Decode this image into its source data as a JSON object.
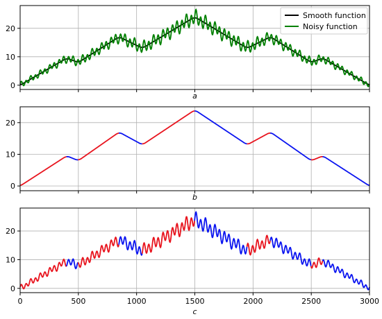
{
  "chart_data": [
    {
      "type": "line",
      "panel_label": "a",
      "xlim": [
        0,
        3000
      ],
      "ylim": [
        -1.5,
        28
      ],
      "x_ticks": [
        0,
        500,
        1000,
        1500,
        2000,
        2500,
        3000
      ],
      "y_ticks": [
        0,
        10,
        20
      ],
      "grid": true,
      "legend": "top-right",
      "series": [
        {
          "name": "Smooth function",
          "color": "#000000",
          "x": [
            0,
            400,
            500,
            850,
            1050,
            1500,
            1950,
            2150,
            2500,
            2600,
            3000
          ],
          "y": [
            0,
            9.5,
            8,
            17,
            13,
            24,
            13,
            17,
            8,
            9.5,
            0
          ]
        },
        {
          "name": "Noisy function",
          "color": "#008000",
          "x": [
            0,
            400,
            500,
            850,
            1050,
            1500,
            1950,
            2150,
            2500,
            2600,
            3000
          ],
          "y": [
            0,
            9.5,
            8,
            17,
            13,
            24,
            13,
            17,
            8,
            9.5,
            0
          ],
          "noise_amplitude_peak": 3
        }
      ]
    },
    {
      "type": "line",
      "panel_label": "b",
      "xlim": [
        0,
        3000
      ],
      "ylim": [
        -1.5,
        25
      ],
      "x_ticks": [
        0,
        500,
        1000,
        1500,
        2000,
        2500,
        3000
      ],
      "y_ticks": [
        0,
        10,
        20
      ],
      "grid": true,
      "segment_colors": {
        "rising": "#e8141e",
        "falling": "#0a14f0"
      },
      "x": [
        0,
        400,
        500,
        850,
        1050,
        1500,
        1950,
        2150,
        2500,
        2600,
        3000
      ],
      "y": [
        0,
        9.5,
        8,
        17,
        13,
        24,
        13,
        17,
        8,
        9.5,
        0
      ]
    },
    {
      "type": "line",
      "panel_label": "c",
      "xlim": [
        0,
        3000
      ],
      "ylim": [
        -1.5,
        28
      ],
      "x_ticks": [
        0,
        500,
        1000,
        1500,
        2000,
        2500,
        3000
      ],
      "y_ticks": [
        0,
        10,
        20
      ],
      "grid": true,
      "segment_colors": {
        "rising": "#e8141e",
        "falling": "#0a14f0"
      },
      "x": [
        0,
        400,
        500,
        850,
        1050,
        1500,
        1950,
        2150,
        2500,
        2600,
        3000
      ],
      "y": [
        0,
        9.5,
        8,
        17,
        13,
        24,
        13,
        17,
        8,
        9.5,
        0
      ],
      "noise_amplitude_peak": 3
    }
  ]
}
